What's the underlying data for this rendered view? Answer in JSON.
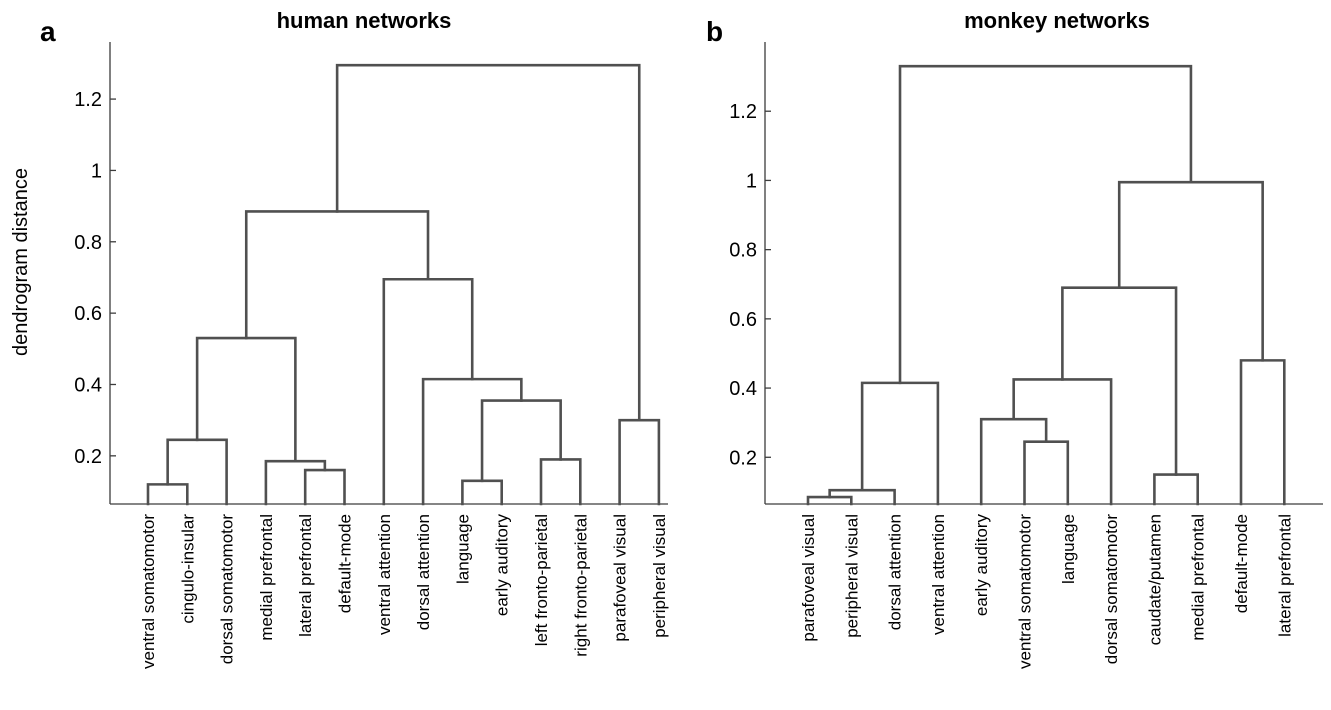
{
  "chart_data": [
    {
      "type": "dendrogram",
      "letter": "a",
      "title": "human networks",
      "ylabel": "dendrogram distance",
      "ylim": [
        0.065,
        1.36
      ],
      "yticks": [
        0.2,
        0.4,
        0.6,
        0.8,
        1,
        1.2
      ],
      "ytick_labels": [
        "0.2",
        "0.4",
        "0.6",
        "0.8",
        "1",
        "1.2"
      ],
      "leaves": [
        "ventral somatomotor",
        "cingulo-insular",
        "dorsal somatomotor",
        "medial prefrontal",
        "lateral prefrontal",
        "default-mode",
        "ventral attention",
        "dorsal attention",
        "language",
        "early auditory",
        "left fronto-parietal",
        "right fronto-parietal",
        "parafoveal visual",
        "peripheral visual"
      ],
      "merges": [
        {
          "left": "L0",
          "right": "L1",
          "height": 0.12
        },
        {
          "left": "M0",
          "right": "L2",
          "height": 0.245
        },
        {
          "left": "L4",
          "right": "L5",
          "height": 0.16
        },
        {
          "left": "L3",
          "right": "M2",
          "height": 0.185
        },
        {
          "left": "M1",
          "right": "M3",
          "height": 0.53
        },
        {
          "left": "L8",
          "right": "L9",
          "height": 0.13
        },
        {
          "left": "L10",
          "right": "L11",
          "height": 0.19
        },
        {
          "left": "M5",
          "right": "M6",
          "height": 0.355
        },
        {
          "left": "L7",
          "right": "M7",
          "height": 0.415
        },
        {
          "left": "L6",
          "right": "M8",
          "height": 0.695
        },
        {
          "left": "M4",
          "right": "M9",
          "height": 0.885
        },
        {
          "left": "L12",
          "right": "L13",
          "height": 0.3
        },
        {
          "left": "M10",
          "right": "M11",
          "height": 1.295
        }
      ]
    },
    {
      "type": "dendrogram",
      "letter": "b",
      "title": "monkey networks",
      "ylabel": "",
      "ylim": [
        0.065,
        1.4
      ],
      "yticks": [
        0.2,
        0.4,
        0.6,
        0.8,
        1,
        1.2
      ],
      "ytick_labels": [
        "0.2",
        "0.4",
        "0.6",
        "0.8",
        "1",
        "1.2"
      ],
      "leaves": [
        "parafoveal visual",
        "peripheral visual",
        "dorsal attention",
        "ventral attention",
        "early auditory",
        "ventral somatomotor",
        "language",
        "dorsal somatomotor",
        "caudate/putamen",
        "medial prefrontal",
        "default-mode",
        "lateral prefrontal"
      ],
      "merges": [
        {
          "left": "L0",
          "right": "L1",
          "height": 0.085
        },
        {
          "left": "M0",
          "right": "L2",
          "height": 0.105
        },
        {
          "left": "M1",
          "right": "L3",
          "height": 0.415
        },
        {
          "left": "L5",
          "right": "L6",
          "height": 0.245
        },
        {
          "left": "L4",
          "right": "M3",
          "height": 0.31
        },
        {
          "left": "M4",
          "right": "L7",
          "height": 0.425
        },
        {
          "left": "L8",
          "right": "L9",
          "height": 0.15
        },
        {
          "left": "M5",
          "right": "M6",
          "height": 0.69
        },
        {
          "left": "L10",
          "right": "L11",
          "height": 0.48
        },
        {
          "left": "M7",
          "right": "M8",
          "height": 0.995
        },
        {
          "left": "M2",
          "right": "M9",
          "height": 1.33
        }
      ]
    }
  ]
}
